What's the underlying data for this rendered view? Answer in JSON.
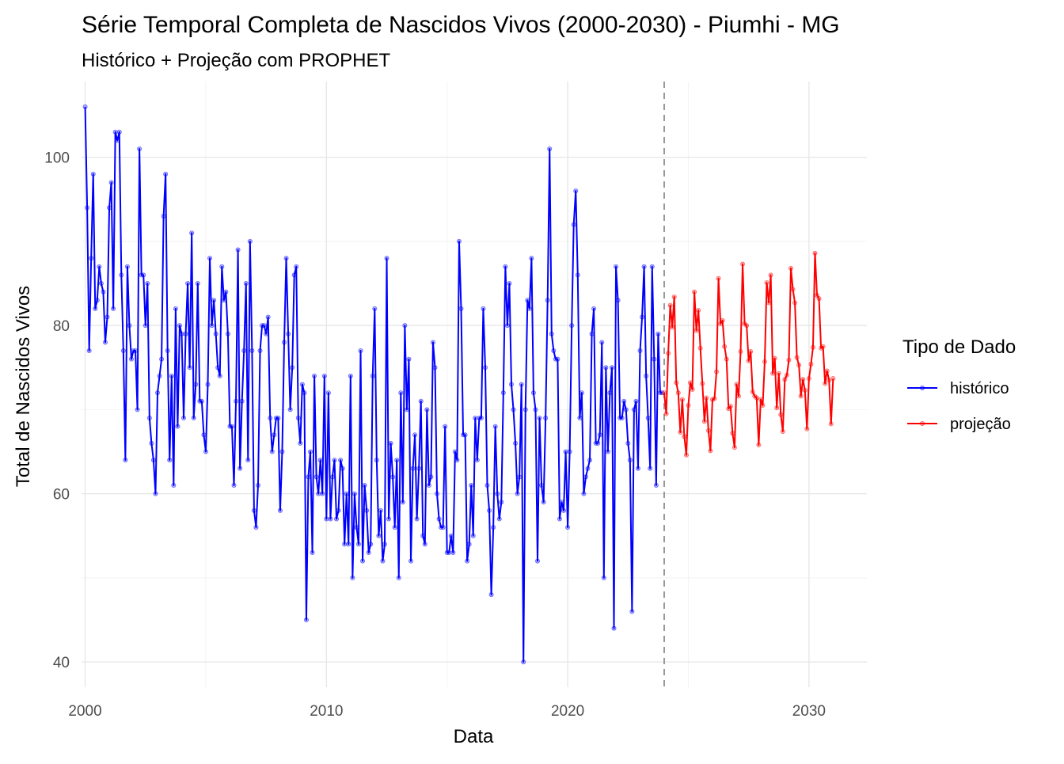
{
  "chart_data": {
    "type": "line",
    "title": "Série Temporal Completa de Nascidos Vivos (2000-2030) -  Piumhi - MG",
    "subtitle": "Histórico + Projeção com PROPHET",
    "xlabel": "Data",
    "ylabel": "Total de Nascidos Vivos",
    "x_ticks": [
      "2000",
      "2010",
      "2020",
      "2030"
    ],
    "y_ticks": [
      "40",
      "60",
      "80",
      "100"
    ],
    "xlim": [
      1999.85,
      2032.4
    ],
    "ylim": [
      37,
      109
    ],
    "x_start": "2000-01",
    "grid": true,
    "vline": {
      "x": "2024-01",
      "style": "dashed",
      "color": "#999999"
    },
    "legend": {
      "title": "Tipo de Dado",
      "position": "right",
      "entries": [
        {
          "label": "histórico",
          "color": "#0000ff"
        },
        {
          "label": "projeção",
          "color": "#ff0000"
        }
      ]
    },
    "series": [
      {
        "name": "histórico",
        "color": "#0000ff",
        "start": "2000-01",
        "frequency": "monthly",
        "values": [
          106,
          94,
          77,
          88,
          98,
          82,
          83,
          87,
          85,
          84,
          78,
          81,
          94,
          97,
          82,
          103,
          102,
          103,
          86,
          77,
          64,
          87,
          80,
          76,
          77,
          77,
          70,
          101,
          86,
          86,
          80,
          85,
          69,
          66,
          64,
          60,
          72,
          74,
          76,
          93,
          98,
          77,
          64,
          74,
          61,
          82,
          68,
          80,
          79,
          69,
          79,
          85,
          75,
          91,
          69,
          73,
          85,
          71,
          71,
          67,
          65,
          73,
          88,
          80,
          83,
          79,
          75,
          74,
          87,
          83,
          84,
          79,
          68,
          68,
          61,
          71,
          89,
          63,
          71,
          77,
          85,
          64,
          90,
          77,
          58,
          56,
          61,
          77,
          80,
          80,
          79,
          81,
          69,
          65,
          67,
          69,
          69,
          58,
          65,
          78,
          88,
          79,
          70,
          75,
          86,
          87,
          69,
          66,
          73,
          72,
          45,
          62,
          65,
          53,
          74,
          62,
          60,
          64,
          60,
          74,
          57,
          72,
          57,
          62,
          64,
          57,
          58,
          64,
          63,
          54,
          60,
          54,
          74,
          50,
          60,
          56,
          54,
          77,
          52,
          61,
          58,
          53,
          54,
          74,
          82,
          64,
          55,
          58,
          52,
          54,
          88,
          57,
          66,
          62,
          56,
          64,
          50,
          72,
          59,
          80,
          70,
          76,
          52,
          63,
          67,
          57,
          63,
          71,
          55,
          54,
          70,
          61,
          62,
          78,
          75,
          60,
          57,
          56,
          56,
          68,
          53,
          53,
          55,
          53,
          65,
          64,
          90,
          82,
          67,
          67,
          52,
          54,
          61,
          55,
          69,
          64,
          69,
          69,
          82,
          75,
          61,
          58,
          48,
          56,
          68,
          60,
          57,
          59,
          72,
          87,
          80,
          85,
          73,
          70,
          66,
          60,
          62,
          73,
          40,
          70,
          83,
          82,
          88,
          72,
          70,
          52,
          69,
          61,
          59,
          69,
          83,
          101,
          79,
          77,
          76,
          76,
          57,
          59,
          58,
          65,
          56,
          65,
          80,
          92,
          96,
          86,
          69,
          72,
          60,
          62,
          63,
          64,
          79,
          82,
          66,
          66,
          67,
          78,
          50,
          75,
          65,
          72,
          75,
          44,
          87,
          83,
          69,
          69,
          71,
          70,
          66,
          64,
          46,
          70,
          71,
          63,
          77,
          81,
          87,
          74,
          69,
          63,
          87,
          76,
          61,
          79,
          72,
          72
        ]
      },
      {
        "name": "projeção",
        "color": "#ff0000",
        "start": "2024-01",
        "frequency": "monthly",
        "values": [
          72,
          69.5,
          76.7,
          82.4,
          79.8,
          83.4,
          73.2,
          72,
          67.3,
          71.2,
          66.8,
          64.6,
          70.5,
          73.2,
          72.4,
          84,
          79.4,
          81.8,
          77.3,
          73.1,
          68.6,
          71.4,
          67.5,
          65.1,
          71.2,
          71.3,
          74.5,
          85.6,
          80.2,
          80.6,
          77.5,
          76,
          70.1,
          70.4,
          67.2,
          65.5,
          73,
          71.6,
          76.9,
          87.3,
          80.2,
          80,
          75.8,
          76.9,
          72.1,
          71.6,
          71.4,
          65.8,
          71.2,
          70.5,
          75.7,
          85.1,
          82.7,
          86,
          74.3,
          76.1,
          70.2,
          74.3,
          69.4,
          67.4,
          73.6,
          74.1,
          75.9,
          86.8,
          84.3,
          82.7,
          76.2,
          75.3,
          71.6,
          73.6,
          72.3,
          67.7,
          73.7,
          75.4,
          77.4,
          88.6,
          83.6,
          83.2,
          77.3,
          77.5,
          73.1,
          74.6,
          73.5,
          68.3,
          73.7
        ]
      }
    ]
  }
}
